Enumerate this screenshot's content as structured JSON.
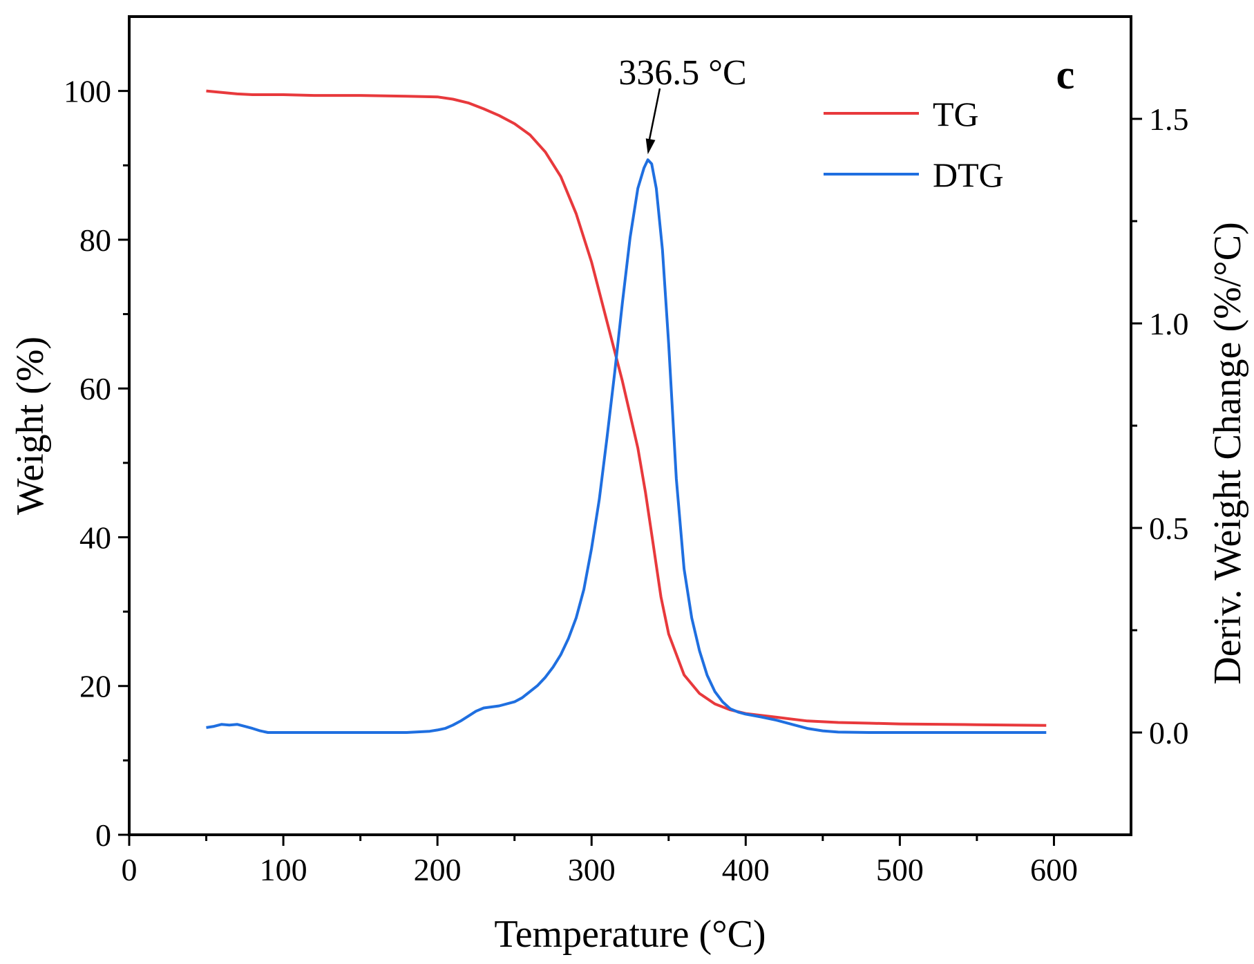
{
  "chart_data": {
    "type": "line",
    "panel_label": "c",
    "xlabel": "Temperature (°C)",
    "ylabel_left": "Weight (%)",
    "ylabel_right": "Deriv. Weight Change (%/°C)",
    "xlim": [
      0,
      650
    ],
    "ylim_left": [
      0,
      110
    ],
    "ylim_right": [
      -0.25,
      1.75
    ],
    "xticks": [
      0,
      100,
      200,
      300,
      400,
      500,
      600
    ],
    "xtick_labels": [
      "0",
      "100",
      "200",
      "300",
      "400",
      "500",
      "600"
    ],
    "yticks_left": [
      0,
      20,
      40,
      60,
      80,
      100
    ],
    "ytick_labels_left": [
      "0",
      "20",
      "40",
      "60",
      "80",
      "100"
    ],
    "yticks_right": [
      0.0,
      0.5,
      1.0,
      1.5
    ],
    "ytick_labels_right": [
      "0.0",
      "0.5",
      "1.0",
      "1.5"
    ],
    "grid": false,
    "legend_position": "top-right",
    "annotation": {
      "text": "336.5 °C",
      "x": 336.5,
      "y_right": 1.4
    },
    "series": [
      {
        "name": "TG",
        "axis": "left",
        "color": "#e8393c",
        "x": [
          50,
          60,
          70,
          80,
          100,
          120,
          150,
          180,
          200,
          210,
          220,
          230,
          240,
          250,
          260,
          270,
          280,
          290,
          300,
          310,
          320,
          330,
          335,
          340,
          345,
          350,
          360,
          370,
          380,
          390,
          400,
          420,
          440,
          460,
          480,
          500,
          550,
          595
        ],
        "values": [
          100,
          99.8,
          99.6,
          99.5,
          99.5,
          99.4,
          99.4,
          99.3,
          99.2,
          98.9,
          98.4,
          97.6,
          96.7,
          95.6,
          94.1,
          91.8,
          88.5,
          83.5,
          77,
          69,
          61,
          52,
          46,
          39,
          32,
          27,
          21.5,
          19,
          17.6,
          16.8,
          16.3,
          15.8,
          15.3,
          15.1,
          15,
          14.9,
          14.8,
          14.7
        ]
      },
      {
        "name": "DTG",
        "axis": "right",
        "color": "#1f6fe0",
        "x": [
          50,
          55,
          60,
          65,
          70,
          75,
          80,
          85,
          90,
          100,
          120,
          150,
          180,
          195,
          200,
          205,
          210,
          215,
          220,
          225,
          230,
          240,
          250,
          255,
          260,
          265,
          270,
          275,
          280,
          285,
          290,
          295,
          300,
          305,
          310,
          315,
          320,
          325,
          330,
          334,
          336.5,
          339,
          342,
          346,
          350,
          355,
          360,
          365,
          370,
          375,
          380,
          385,
          390,
          395,
          400,
          410,
          420,
          430,
          440,
          450,
          460,
          480,
          500,
          550,
          595
        ],
        "values": [
          0.012,
          0.015,
          0.02,
          0.018,
          0.02,
          0.015,
          0.01,
          0.004,
          0.0,
          0.0,
          0.0,
          0.0,
          0.0,
          0.003,
          0.006,
          0.01,
          0.018,
          0.028,
          0.04,
          0.052,
          0.06,
          0.065,
          0.075,
          0.085,
          0.1,
          0.115,
          0.135,
          0.16,
          0.19,
          0.23,
          0.28,
          0.35,
          0.45,
          0.57,
          0.72,
          0.88,
          1.05,
          1.21,
          1.33,
          1.38,
          1.4,
          1.39,
          1.33,
          1.18,
          0.95,
          0.62,
          0.4,
          0.28,
          0.2,
          0.14,
          0.1,
          0.075,
          0.058,
          0.05,
          0.045,
          0.038,
          0.03,
          0.02,
          0.01,
          0.004,
          0.001,
          0.0,
          0.0,
          0.0,
          0.0
        ]
      }
    ]
  }
}
